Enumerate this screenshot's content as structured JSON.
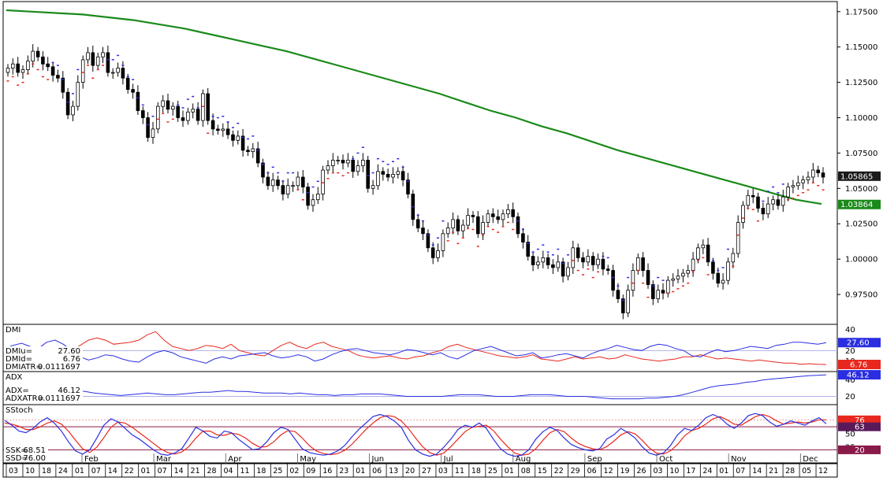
{
  "chart_data": {
    "type": "candlestick",
    "price_axis": {
      "ticks": [
        "1.17500",
        "1.15000",
        "1.12500",
        "1.10000",
        "1.07500",
        "1.05000",
        "1.02500",
        "1.00000",
        "0.97500"
      ],
      "ylim": [
        0.955,
        1.181
      ],
      "last_price": "1.05865",
      "ma_value": "1.03864",
      "ma_color": "#1a8a1a"
    },
    "closes": [
      1.135,
      1.138,
      1.132,
      1.134,
      1.14,
      1.147,
      1.143,
      1.138,
      1.136,
      1.13,
      1.128,
      1.118,
      1.102,
      1.108,
      1.125,
      1.141,
      1.146,
      1.137,
      1.143,
      1.146,
      1.132,
      1.132,
      1.135,
      1.128,
      1.12,
      1.118,
      1.105,
      1.1,
      1.086,
      1.092,
      1.108,
      1.112,
      1.106,
      1.108,
      1.1,
      1.098,
      1.104,
      1.106,
      1.098,
      1.117,
      1.098,
      1.092,
      1.091,
      1.092,
      1.088,
      1.084,
      1.087,
      1.077,
      1.076,
      1.078,
      1.068,
      1.058,
      1.052,
      1.056,
      1.052,
      1.046,
      1.052,
      1.052,
      1.058,
      1.051,
      1.038,
      1.042,
      1.046,
      1.063,
      1.066,
      1.07,
      1.07,
      1.068,
      1.07,
      1.062,
      1.066,
      1.07,
      1.05,
      1.052,
      1.062,
      1.06,
      1.058,
      1.06,
      1.062,
      1.056,
      1.046,
      1.028,
      1.022,
      1.018,
      1.008,
      1.001,
      1.006,
      1.018,
      1.022,
      1.028,
      1.02,
      1.024,
      1.031,
      1.03,
      1.018,
      1.026,
      1.032,
      1.03,
      1.028,
      1.032,
      1.035,
      1.03,
      1.018,
      1.012,
      1.002,
      0.996,
      0.998,
      1.001,
      0.996,
      0.994,
      0.998,
      0.988,
      0.994,
      1.008,
      1.001,
      0.998,
      1.002,
      0.996,
      1.0,
      0.993,
      0.992,
      0.978,
      0.972,
      0.962,
      0.978,
      0.992,
      1.001,
      0.992,
      0.982,
      0.972,
      0.978,
      0.976,
      0.985,
      0.986,
      0.988,
      0.99,
      0.992,
      1.0,
      1.008,
      1.01,
      0.998,
      0.99,
      0.983,
      0.985,
      0.998,
      1.004,
      1.026,
      1.038,
      1.045,
      1.044,
      1.036,
      1.032,
      1.039,
      1.042,
      1.038,
      1.044,
      1.051,
      1.052,
      1.054,
      1.056,
      1.058,
      1.063,
      1.061,
      1.058
    ],
    "ma_curve": [
      1.176,
      1.175,
      1.174,
      1.173,
      1.171,
      1.169,
      1.166,
      1.163,
      1.159,
      1.155,
      1.151,
      1.147,
      1.142,
      1.137,
      1.132,
      1.127,
      1.122,
      1.117,
      1.111,
      1.105,
      1.1,
      1.094,
      1.089,
      1.083,
      1.077,
      1.072,
      1.067,
      1.062,
      1.057,
      1.052,
      1.047,
      1.042,
      1.039
    ],
    "dmi": {
      "label": "DMI",
      "plus_label": "DMIu=",
      "plus_value": "27.60",
      "minus_label": "DMId=",
      "minus_value": "6.76",
      "atr_label": "DMIATR=",
      "atr_value": "0.0111697",
      "ylim": [
        0,
        45
      ],
      "ticks": [
        "40",
        "20",
        "10"
      ],
      "plus": [
        22,
        25,
        27,
        24,
        22,
        28,
        30,
        26,
        20,
        14,
        11,
        13,
        16,
        15,
        12,
        10,
        9,
        14,
        18,
        20,
        18,
        14,
        12,
        10,
        8,
        12,
        14,
        12,
        15,
        16,
        17,
        18,
        15,
        13,
        14,
        16,
        14,
        10,
        12,
        16,
        19,
        21,
        22,
        20,
        18,
        17,
        16,
        18,
        21,
        20,
        18,
        16,
        18,
        14,
        12,
        16,
        20,
        22,
        24,
        21,
        18,
        15,
        16,
        18,
        13,
        14,
        16,
        17,
        15,
        13,
        17,
        20,
        22,
        25,
        23,
        21,
        20,
        24,
        26,
        25,
        22,
        20,
        15,
        14,
        18,
        21,
        19,
        20,
        22,
        24,
        23,
        22,
        25,
        26,
        28,
        28,
        27,
        26,
        27.6
      ],
      "minus": [
        17,
        16,
        15,
        18,
        20,
        14,
        12,
        16,
        20,
        25,
        30,
        32,
        30,
        26,
        27,
        28,
        30,
        35,
        38,
        30,
        24,
        22,
        20,
        22,
        25,
        24,
        22,
        26,
        20,
        18,
        16,
        15,
        20,
        25,
        28,
        24,
        22,
        26,
        28,
        24,
        22,
        20,
        16,
        14,
        13,
        14,
        15,
        13,
        12,
        14,
        15,
        18,
        20,
        24,
        26,
        23,
        21,
        19,
        17,
        15,
        14,
        13,
        14,
        16,
        12,
        11,
        10,
        12,
        14,
        12,
        13,
        14,
        12,
        13,
        16,
        14,
        12,
        11,
        10,
        11,
        12,
        14,
        14,
        16,
        14,
        12,
        13,
        12,
        11,
        10,
        11,
        10,
        9,
        8,
        8,
        7,
        7.5,
        7,
        6.76
      ]
    },
    "adx": {
      "label": "ADX",
      "adx_label": "ADX=",
      "adx_value": "46.12",
      "atr_label": "ADXATR=",
      "atr_value": "0.0111697",
      "ylim": [
        10,
        50
      ],
      "ticks": [
        "40",
        "20"
      ],
      "values": [
        20,
        20,
        21,
        21,
        22,
        24,
        27,
        28,
        27,
        26,
        24,
        23,
        22,
        21,
        22,
        23,
        24,
        23,
        22,
        22,
        23,
        24,
        25,
        25,
        26,
        27,
        26,
        26,
        25,
        24,
        24,
        24,
        23,
        24,
        23,
        22,
        22,
        21,
        22,
        22,
        23,
        23,
        23,
        22,
        21,
        20,
        20,
        20,
        20,
        20,
        21,
        22,
        22,
        22,
        21,
        20,
        20,
        20,
        21,
        22,
        22,
        22,
        21,
        20,
        20,
        20,
        19,
        18,
        17,
        17,
        17,
        17,
        18,
        18,
        19,
        20,
        22,
        25,
        28,
        31,
        33,
        34,
        35,
        37,
        38,
        40,
        41,
        42,
        43,
        44,
        45,
        45.5,
        46.12
      ]
    },
    "sstoch": {
      "label": "SStoch",
      "ssk_label": "SSK=",
      "ssk_value": "68.51",
      "ssd_label": "SSD=",
      "ssd_value": "76.00",
      "ylim": [
        0,
        100
      ],
      "ticks": [
        "75",
        "50",
        "25"
      ],
      "level_labels": [
        "76",
        "63",
        "20"
      ],
      "k": [
        75,
        66,
        55,
        52,
        60,
        72,
        80,
        70,
        55,
        35,
        18,
        12,
        20,
        42,
        66,
        78,
        72,
        60,
        48,
        40,
        30,
        20,
        12,
        10,
        14,
        22,
        42,
        62,
        55,
        45,
        42,
        55,
        52,
        40,
        30,
        20,
        22,
        35,
        52,
        62,
        58,
        40,
        22,
        15,
        12,
        10,
        12,
        18,
        28,
        44,
        58,
        70,
        82,
        86,
        82,
        74,
        62,
        38,
        20,
        12,
        8,
        12,
        25,
        40,
        58,
        66,
        62,
        70,
        60,
        40,
        22,
        12,
        8,
        10,
        20,
        40,
        54,
        62,
        56,
        42,
        30,
        24,
        20,
        18,
        22,
        40,
        48,
        60,
        52,
        42,
        26,
        14,
        10,
        14,
        28,
        48,
        60,
        56,
        66,
        80,
        86,
        80,
        68,
        60,
        70,
        84,
        88,
        84,
        72,
        64,
        68,
        74,
        70,
        66,
        74,
        80,
        68.51
      ],
      "d": [
        70,
        68,
        64,
        58,
        58,
        63,
        70,
        74,
        68,
        55,
        38,
        22,
        15,
        25,
        43,
        62,
        72,
        70,
        62,
        52,
        42,
        32,
        22,
        15,
        12,
        16,
        26,
        42,
        55,
        55,
        48,
        47,
        51,
        49,
        42,
        32,
        25,
        26,
        35,
        48,
        56,
        54,
        42,
        28,
        18,
        13,
        11,
        13,
        19,
        30,
        44,
        58,
        70,
        80,
        84,
        82,
        74,
        60,
        42,
        26,
        15,
        10,
        14,
        26,
        40,
        54,
        62,
        64,
        66,
        56,
        40,
        26,
        14,
        10,
        12,
        22,
        38,
        52,
        58,
        54,
        42,
        32,
        26,
        22,
        20,
        26,
        36,
        48,
        54,
        50,
        38,
        24,
        14,
        12,
        18,
        30,
        46,
        56,
        60,
        68,
        78,
        82,
        76,
        68,
        66,
        74,
        82,
        86,
        82,
        74,
        68,
        70,
        72,
        70,
        72,
        76,
        76.0
      ]
    },
    "x_axis": {
      "day_ticks": [
        "03",
        "10",
        "18",
        "24",
        "01",
        "07",
        "14",
        "22",
        "01",
        "07",
        "14",
        "21",
        "28",
        "04",
        "11",
        "18",
        "25",
        "02",
        "09",
        "16",
        "23",
        "01",
        "06",
        "13",
        "20",
        "27",
        "03",
        "11",
        "18",
        "25",
        "01",
        "08",
        "15",
        "22",
        "29",
        "06",
        "12",
        "19",
        "26",
        "03",
        "10",
        "17",
        "24",
        "01",
        "07",
        "14",
        "21",
        "28",
        "05",
        "12"
      ],
      "months": [
        "Feb",
        "Mar",
        "Apr",
        "May",
        "Jun",
        "Jul",
        "Aug",
        "Sep",
        "Oct",
        "Nov",
        "Dec"
      ]
    }
  }
}
